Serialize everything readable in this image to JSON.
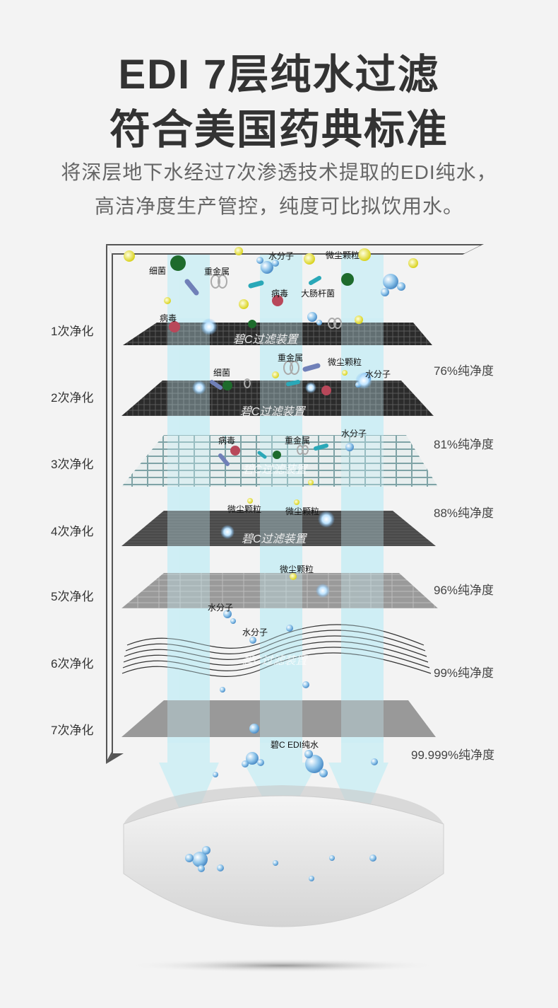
{
  "header": {
    "title_line1": "EDI 7层纯水过滤",
    "title_line2": "符合美国药典标准",
    "subtitle_line1": "将深层地下水经过7次渗透技术提取的EDI纯水，",
    "subtitle_line2": "高洁净度生产管控，纯度可比拟饮用水。"
  },
  "stages": [
    {
      "label": "1次净化",
      "purity": ""
    },
    {
      "label": "2次净化",
      "purity": "76%纯净度"
    },
    {
      "label": "3次净化",
      "purity": "81%纯净度"
    },
    {
      "label": "4次净化",
      "purity": "88%纯净度"
    },
    {
      "label": "5次净化",
      "purity": "96%纯净度"
    },
    {
      "label": "6次净化",
      "purity": "99%纯净度"
    },
    {
      "label": "7次净化",
      "purity": "99.999%纯净度"
    }
  ],
  "layer_name": "碧C过滤装置",
  "tags": {
    "bacteria": "细菌",
    "heavy_metal": "重金属",
    "water_molecule": "水分子",
    "dust": "微尘颗粒",
    "virus": "病毒",
    "ecoli": "大肠杆菌",
    "result": "碧C EDI纯水"
  },
  "colors": {
    "title": "#333333",
    "arrow": "#c8eef5",
    "layer_dark": "#2c2c2c",
    "layer_grid": "#7fa3a6",
    "layer_gray": "#8c8c8c",
    "bowl": "#dcdcdc"
  }
}
